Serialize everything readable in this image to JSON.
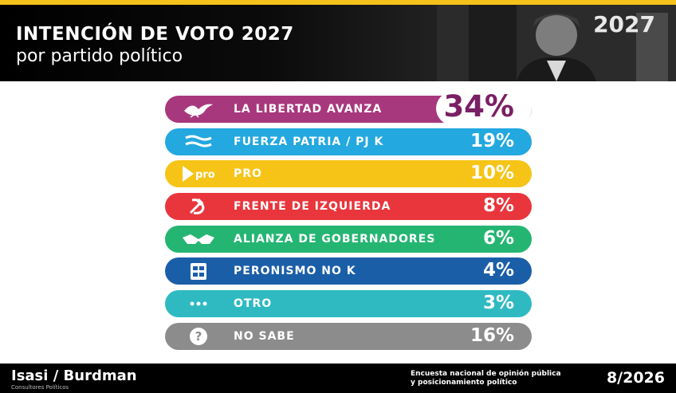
{
  "header": {
    "title": "INTENCIÓN DE VOTO 2027",
    "subtitle": "por partido político",
    "year_badge": "2027"
  },
  "chart_data": {
    "type": "bar",
    "title": "INTENCIÓN DE VOTO 2027",
    "subtitle": "por partido político",
    "categories": [
      "LA LIBERTAD AVANZA",
      "FUERZA PATRIA / PJ K",
      "PRO",
      "FRENTE DE IZQUIERDA",
      "ALIANZA DE GOBERNADORES",
      "PERONISMO NO K",
      "OTRO",
      "NO SABE"
    ],
    "values": [
      34,
      19,
      10,
      8,
      6,
      4,
      3,
      16
    ],
    "value_labels": [
      "34%",
      "19%",
      "10%",
      "8%",
      "6%",
      "4%",
      "3%",
      "16%"
    ],
    "colors": [
      "#a8387d",
      "#23a8e0",
      "#f6c417",
      "#e8363c",
      "#25b573",
      "#1b5ea8",
      "#2fbac2",
      "#8c8c8c"
    ],
    "icons": [
      "dove-icon",
      "flag-stripes-icon",
      "pro-logo-icon",
      "hammer-sickle-icon",
      "handshake-icon",
      "building-icon",
      "dots-icon",
      "question-icon"
    ],
    "pro_icon_text": "pro",
    "unit": "%"
  },
  "footer": {
    "brand": "Isasi / Burdman",
    "brand_sub": "Consultores Políticos",
    "survey_line1": "Encuesta nacional de opinión pública",
    "survey_line2": "y posicionamiento político",
    "date": "8/2026"
  }
}
